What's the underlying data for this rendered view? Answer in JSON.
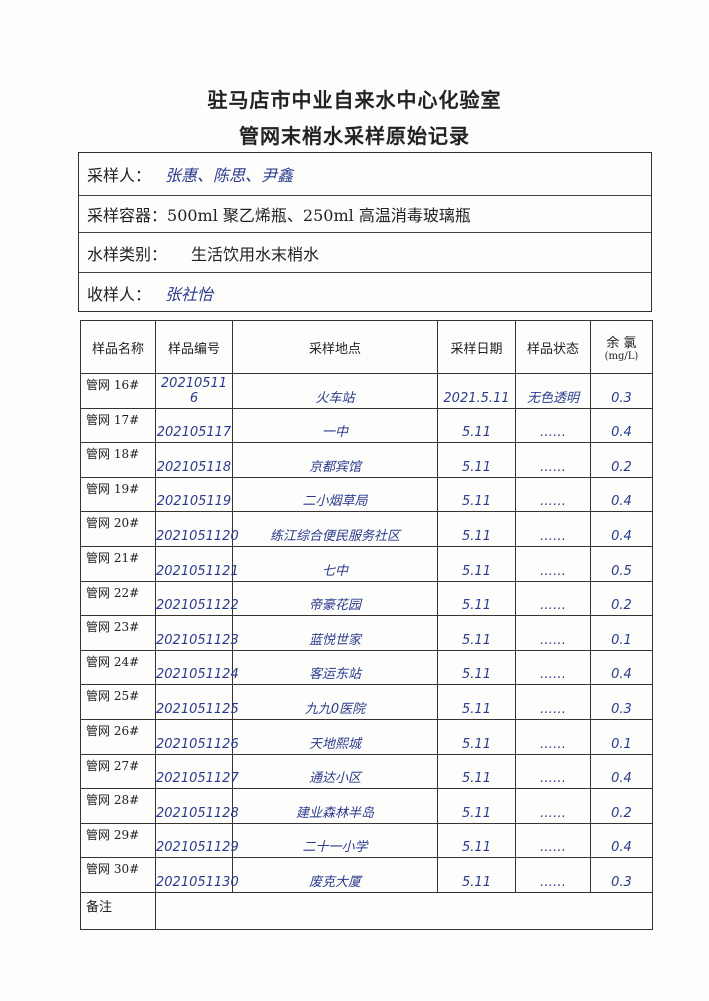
{
  "header": {
    "title_line1": "驻马店市中业自来水中心化验室",
    "title_line2": "管网末梢水采样原始记录"
  },
  "info": {
    "sampler_label": "采样人：",
    "sampler_value": "张惠、陈思、尹鑫",
    "container_label": "采样容器：",
    "container_value": "500ml 聚乙烯瓶、250ml 高温消毒玻璃瓶",
    "category_label": "水样类别：",
    "category_value": "生活饮用水末梢水",
    "receiver_label": "收样人：",
    "receiver_value": "张社怡"
  },
  "table": {
    "headers": {
      "name": "样品名称",
      "id": "样品编号",
      "location": "采样地点",
      "date": "采样日期",
      "status": "样品状态",
      "chlorine": "余 氯",
      "chlorine_unit": "(mg/L)"
    },
    "rows": [
      {
        "name": "管网 16#",
        "id": "20210511 6",
        "location": "火车站",
        "date": "2021.5.11",
        "status": "无色透明",
        "chlorine": "0.3"
      },
      {
        "name": "管网 17#",
        "id": "202105117",
        "location": "一中",
        "date": "5.11",
        "status": "……",
        "chlorine": "0.4"
      },
      {
        "name": "管网 18#",
        "id": "202105118",
        "location": "京都宾馆",
        "date": "5.11",
        "status": "……",
        "chlorine": "0.2"
      },
      {
        "name": "管网 19#",
        "id": "202105119",
        "location": "二小烟草局",
        "date": "5.11",
        "status": "……",
        "chlorine": "0.4"
      },
      {
        "name": "管网 20#",
        "id": "2021051120",
        "location": "练江综合便民服务社区",
        "date": "5.11",
        "status": "……",
        "chlorine": "0.4"
      },
      {
        "name": "管网 21#",
        "id": "2021051121",
        "location": "七中",
        "date": "5.11",
        "status": "……",
        "chlorine": "0.5"
      },
      {
        "name": "管网 22#",
        "id": "2021051122",
        "location": "帝豪花园",
        "date": "5.11",
        "status": "……",
        "chlorine": "0.2"
      },
      {
        "name": "管网 23#",
        "id": "2021051123",
        "location": "蓝悦世家",
        "date": "5.11",
        "status": "……",
        "chlorine": "0.1"
      },
      {
        "name": "管网 24#",
        "id": "2021051124",
        "location": "客运东站",
        "date": "5.11",
        "status": "……",
        "chlorine": "0.4"
      },
      {
        "name": "管网 25#",
        "id": "2021051125",
        "location": "九九0医院",
        "date": "5.11",
        "status": "……",
        "chlorine": "0.3"
      },
      {
        "name": "管网 26#",
        "id": "2021051126",
        "location": "天地熙城",
        "date": "5.11",
        "status": "……",
        "chlorine": "0.1"
      },
      {
        "name": "管网 27#",
        "id": "2021051127",
        "location": "通达小区",
        "date": "5.11",
        "status": "……",
        "chlorine": "0.4"
      },
      {
        "name": "管网 28#",
        "id": "2021051128",
        "location": "建业森林半岛",
        "date": "5.11",
        "status": "……",
        "chlorine": "0.2"
      },
      {
        "name": "管网 29#",
        "id": "2021051129",
        "location": "二十一小学",
        "date": "5.11",
        "status": "……",
        "chlorine": "0.4"
      },
      {
        "name": "管网 30#",
        "id": "2021051130",
        "location": "废克大厦",
        "date": "5.11",
        "status": "……",
        "chlorine": "0.3"
      }
    ],
    "remarks_label": "备注"
  }
}
